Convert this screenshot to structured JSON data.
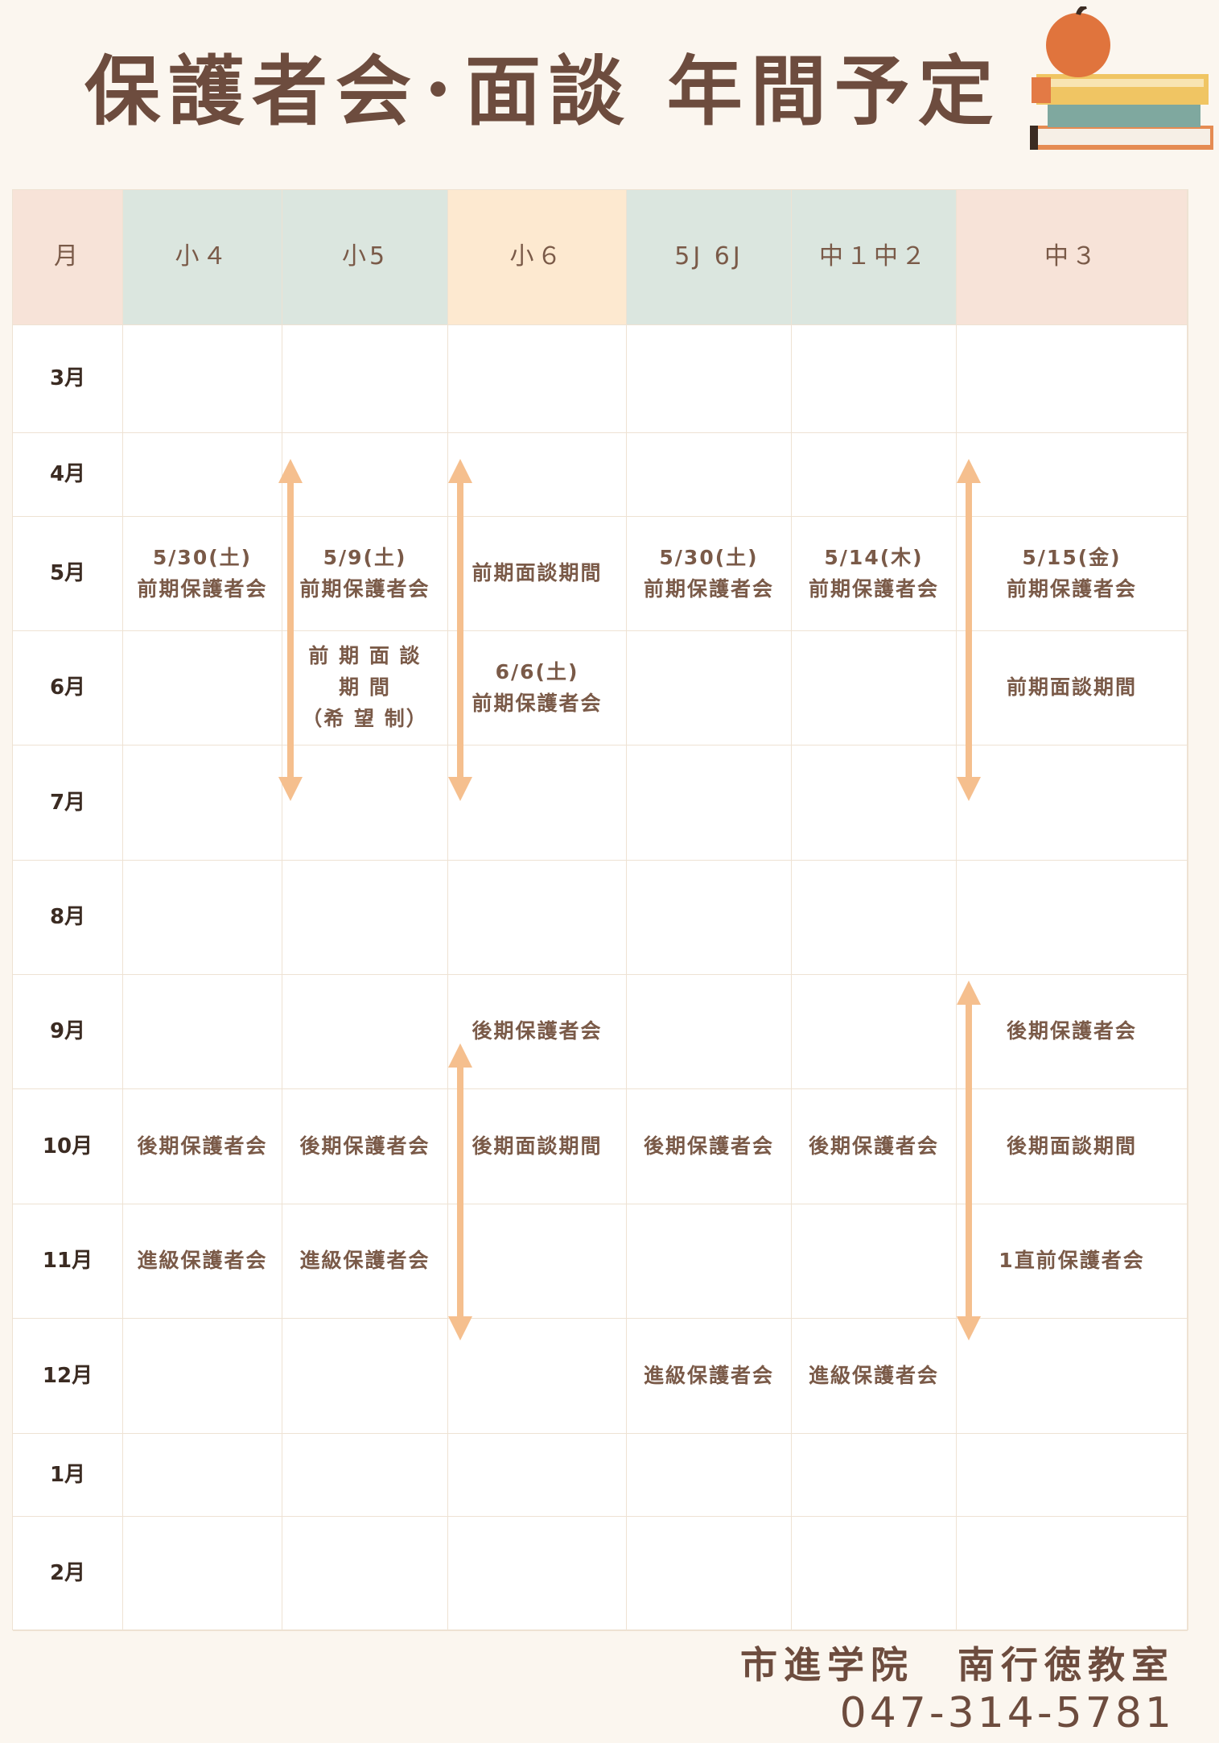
{
  "title": "保護者会･面談 年間予定",
  "colors": {
    "month_header": "#f7e3d8",
    "teal_header": "#dbe6df",
    "peach_header": "#fde9d0",
    "arrow": "#f5bf8e"
  },
  "headers": [
    "月",
    "小４",
    "小5",
    "小６",
    "5J 6J",
    "中１中２",
    "中３"
  ],
  "months": [
    "3月",
    "4月",
    "5月",
    "6月",
    "7月",
    "8月",
    "9月",
    "10月",
    "11月",
    "12月",
    "1月",
    "2月"
  ],
  "rows": [
    [
      "",
      "",
      "",
      "",
      "",
      ""
    ],
    [
      "",
      "",
      "",
      "",
      "",
      ""
    ],
    [
      "5/30(土)\n前期保護者会",
      "5/9(土)\n前期保護者会",
      "前期面談期間",
      "5/30(土)\n前期保護者会",
      "5/14(木)\n前期保護者会",
      "5/15(金)\n前期保護者会"
    ],
    [
      "",
      "前 期 面 談\n期 間\n（希 望 制）",
      "6/6(土)\n前期保護者会",
      "",
      "",
      "前期面談期間"
    ],
    [
      "",
      "",
      "",
      "",
      "",
      ""
    ],
    [
      "",
      "",
      "",
      "",
      "",
      ""
    ],
    [
      "",
      "",
      "後期保護者会",
      "",
      "",
      "後期保護者会"
    ],
    [
      "後期保護者会",
      "後期保護者会",
      "後期面談期間",
      "後期保護者会",
      "後期保護者会",
      "後期面談期間"
    ],
    [
      "進級保護者会",
      "進級保護者会",
      "",
      "",
      "",
      "1直前保護者会"
    ],
    [
      "",
      "",
      "",
      "進級保護者会",
      "進級保護者会",
      ""
    ],
    [
      "",
      "",
      "",
      "",
      "",
      ""
    ],
    [
      "",
      "",
      "",
      "",
      "",
      ""
    ]
  ],
  "footer": {
    "school": "市進学院　南行徳教室",
    "phone": "047-314-5781"
  }
}
